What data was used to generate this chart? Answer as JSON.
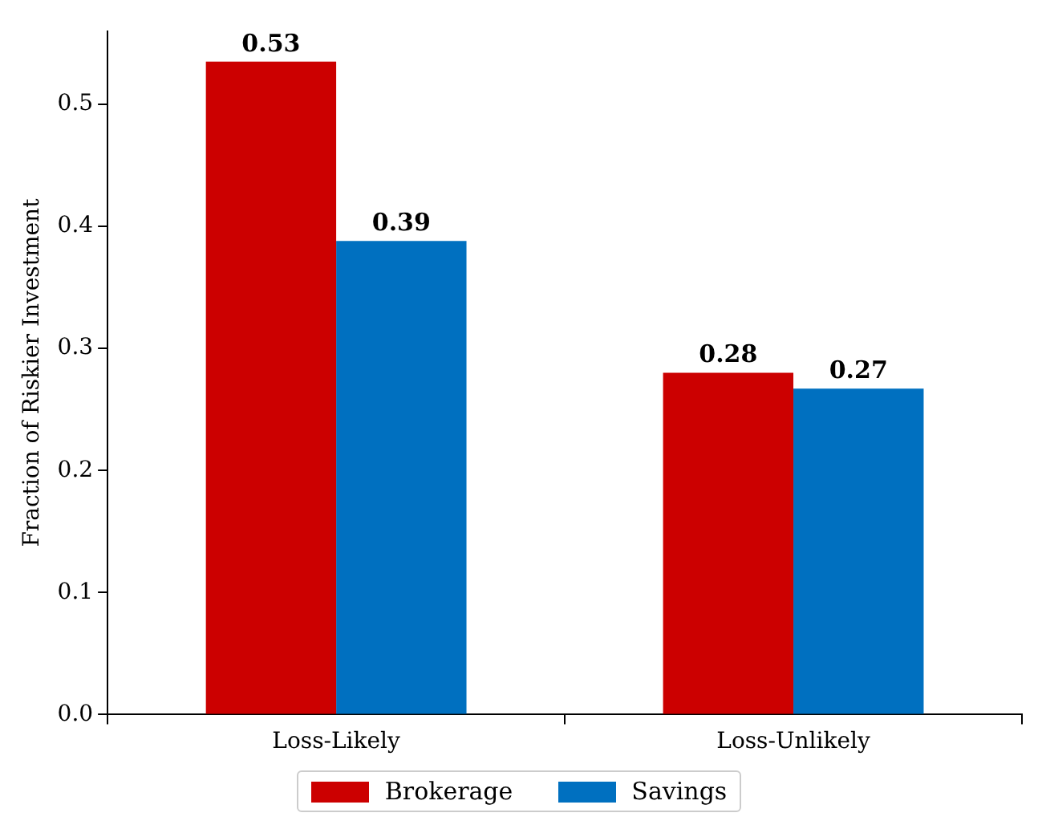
{
  "chart_data": {
    "type": "bar",
    "ylabel": "Fraction of Riskier Investment",
    "categories": [
      "Loss-Likely",
      "Loss-Unlikely"
    ],
    "series": [
      {
        "name": "Brokerage",
        "color": "#cc0000",
        "values": [
          0.535,
          0.28
        ],
        "value_labels": [
          "0.53",
          "0.28"
        ]
      },
      {
        "name": "Savings",
        "color": "#0070c0",
        "values": [
          0.388,
          0.267
        ],
        "value_labels": [
          "0.39",
          "0.27"
        ]
      }
    ],
    "ylim": [
      0,
      0.56
    ],
    "yticks": [
      {
        "value": 0,
        "label": "0.0"
      },
      0.1,
      0.2,
      0.3,
      0.4,
      0.5
    ],
    "legend": "bottom"
  }
}
